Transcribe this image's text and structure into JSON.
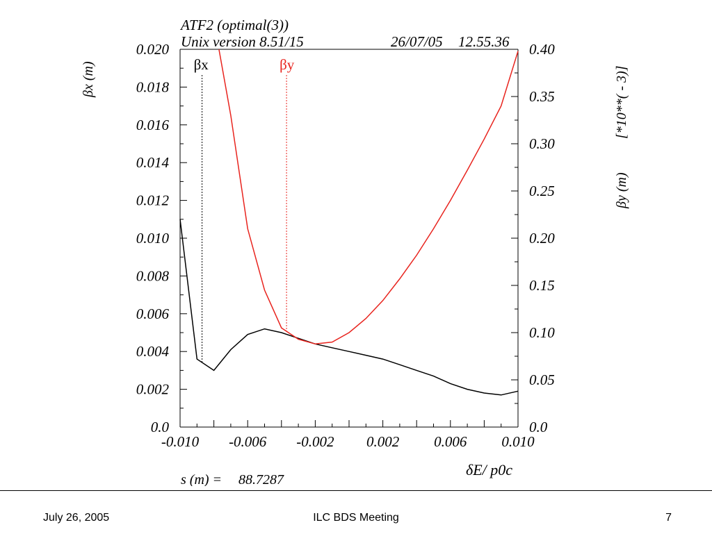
{
  "header": {
    "title": "ATF2 (optimal(3))",
    "version": "Unix version 8.51/15",
    "date": "26/07/05",
    "time": "12.55.36"
  },
  "labels": {
    "left_axis": "βx  (m)",
    "right_axis_prefix": "βy  (m)",
    "right_axis_scale": "[*10**( - 3)]",
    "x_axis": "δE/ p0c",
    "s_readout_label": "s (m) =",
    "s_readout_value": "88.7287",
    "marker_x": "βx",
    "marker_y": "βy"
  },
  "footer": {
    "date": "July 26, 2005",
    "title": "ILC BDS Meeting",
    "page": "7"
  },
  "colors": {
    "beta_x": "#000000",
    "beta_y": "#e8231d"
  },
  "chart_data": {
    "type": "line",
    "xlabel": "δE/ p0c",
    "xlim": [
      -0.01,
      0.01
    ],
    "x_ticks": [
      "-0.010",
      "-0.006",
      "-0.002",
      "0.002",
      "0.006",
      "0.010"
    ],
    "ylim_left": [
      0.0,
      0.02
    ],
    "y_ticks_left": [
      "0.0",
      "0.002",
      "0.004",
      "0.006",
      "0.008",
      "0.010",
      "0.012",
      "0.014",
      "0.016",
      "0.018",
      "0.020"
    ],
    "ylim_right": [
      0.0,
      0.4
    ],
    "y_ticks_right": [
      "0.0",
      "0.05",
      "0.10",
      "0.15",
      "0.20",
      "0.25",
      "0.30",
      "0.35",
      "0.40"
    ],
    "series": [
      {
        "name": "βx",
        "axis": "left",
        "x": [
          -0.01,
          -0.009,
          -0.008,
          -0.007,
          -0.006,
          -0.005,
          -0.004,
          -0.003,
          -0.002,
          -0.001,
          0.0,
          0.001,
          0.002,
          0.003,
          0.004,
          0.005,
          0.006,
          0.007,
          0.008,
          0.009,
          0.01
        ],
        "values": [
          0.011,
          0.0036,
          0.003,
          0.0041,
          0.0049,
          0.0052,
          0.005,
          0.0047,
          0.0044,
          0.0042,
          0.004,
          0.0038,
          0.0036,
          0.0033,
          0.003,
          0.0027,
          0.0023,
          0.002,
          0.0018,
          0.0017,
          0.0019
        ]
      },
      {
        "name": "βy",
        "axis": "right",
        "x": [
          -0.0077,
          -0.007,
          -0.006,
          -0.005,
          -0.004,
          -0.003,
          -0.002,
          -0.001,
          0.0,
          0.001,
          0.002,
          0.003,
          0.004,
          0.005,
          0.006,
          0.007,
          0.008,
          0.009,
          0.01
        ],
        "values": [
          0.4,
          0.33,
          0.21,
          0.145,
          0.105,
          0.093,
          0.088,
          0.09,
          0.1,
          0.115,
          0.134,
          0.157,
          0.182,
          0.21,
          0.24,
          0.272,
          0.305,
          0.34,
          0.398
        ]
      }
    ],
    "markers": [
      {
        "label": "βx",
        "x": -0.0087
      },
      {
        "label": "βy",
        "x": -0.0037
      }
    ]
  }
}
